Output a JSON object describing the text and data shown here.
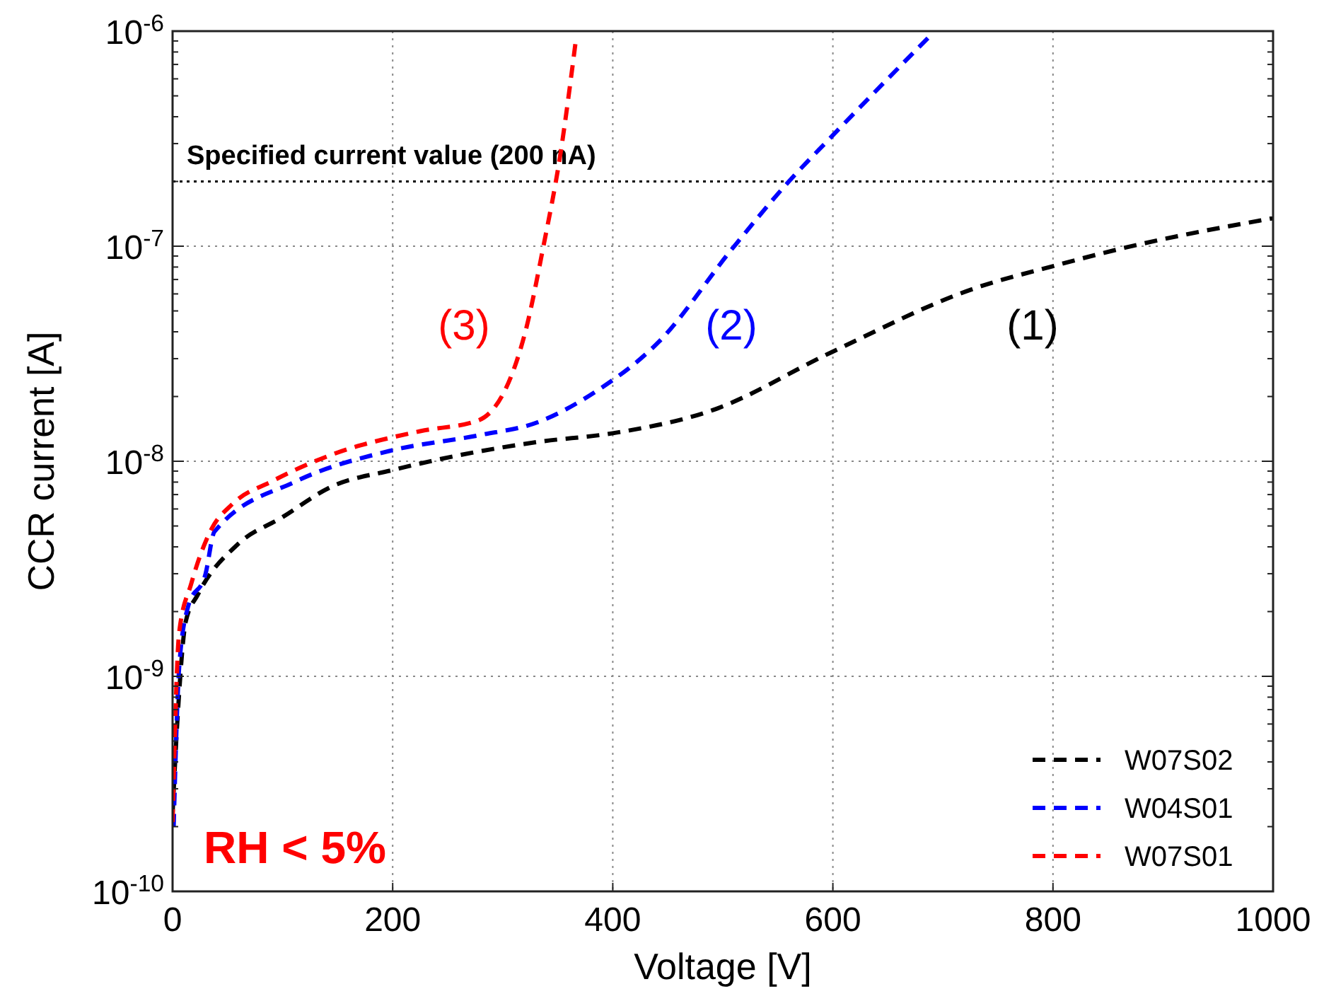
{
  "chart_data": {
    "type": "line",
    "xlabel": "Voltage [V]",
    "ylabel": "CCR current [A]",
    "log": "y",
    "xlim": [
      0,
      1000
    ],
    "xticks": [
      0,
      200,
      400,
      600,
      800,
      1000
    ],
    "ylim": [
      1e-10,
      1e-06
    ],
    "yticks": [
      {
        "value": 1e-10,
        "label": "10$^{-10}$"
      },
      {
        "value": 1e-09,
        "label": "10$^{-9}$"
      },
      {
        "value": 1e-08,
        "label": "10$^{-8}$"
      },
      {
        "value": 1e-07,
        "label": "10$^{-7}$"
      },
      {
        "value": 1e-06,
        "label": "10$^{-6}$"
      }
    ],
    "grid": true,
    "legend": "bottom right",
    "line_style": "dashed",
    "marker": "none",
    "series": [
      {
        "name": "W07S02",
        "color": "#000000",
        "x": [
          0,
          5,
          12,
          23,
          59,
          100,
          144,
          200,
          332,
          400,
          491,
          598,
          730,
          801,
          864,
          1000
        ],
        "values": [
          2.3e-10,
          7e-10,
          1.8e-09,
          2.4e-09,
          4.1e-09,
          5.5e-09,
          7.6e-09,
          9.1e-09,
          1.23e-08,
          1.35e-08,
          1.73e-08,
          3.2e-08,
          6.4e-08,
          8.1e-08,
          9.8e-08,
          1.35e-07
        ]
      },
      {
        "name": "W04S01",
        "color": "#0000ff",
        "x": [
          1,
          6,
          14,
          30,
          38,
          113,
          198,
          278,
          332,
          384,
          442,
          509,
          560,
          598,
          690
        ],
        "values": [
          2e-10,
          1.1e-09,
          2.1e-09,
          3e-09,
          4.7e-09,
          8.1e-09,
          1.12e-08,
          1.32e-08,
          1.52e-08,
          2.1e-08,
          3.6e-08,
          9.8e-08,
          2e-07,
          3.2e-07,
          9.7e-07
        ]
      },
      {
        "name": "W07S01",
        "color": "#ff0000",
        "x": [
          0,
          6,
          17,
          35,
          54,
          91,
          144,
          225,
          278,
          320,
          337,
          352,
          366
        ],
        "values": [
          2.1e-10,
          1.6e-09,
          2.7e-09,
          4.8e-09,
          6.3e-09,
          8.1e-09,
          1.07e-08,
          1.38e-08,
          1.55e-08,
          3.9e-08,
          1e-07,
          2.6e-07,
          8.7e-07
        ]
      }
    ],
    "ref_lines": [
      {
        "axis": "y",
        "value": 2e-07,
        "label": "Specified current value (200 nA)",
        "color": "#000000",
        "line_style": "dotted"
      }
    ],
    "annotations": [
      "(1)",
      "(2)",
      "(3)",
      "RH < 5%"
    ]
  }
}
